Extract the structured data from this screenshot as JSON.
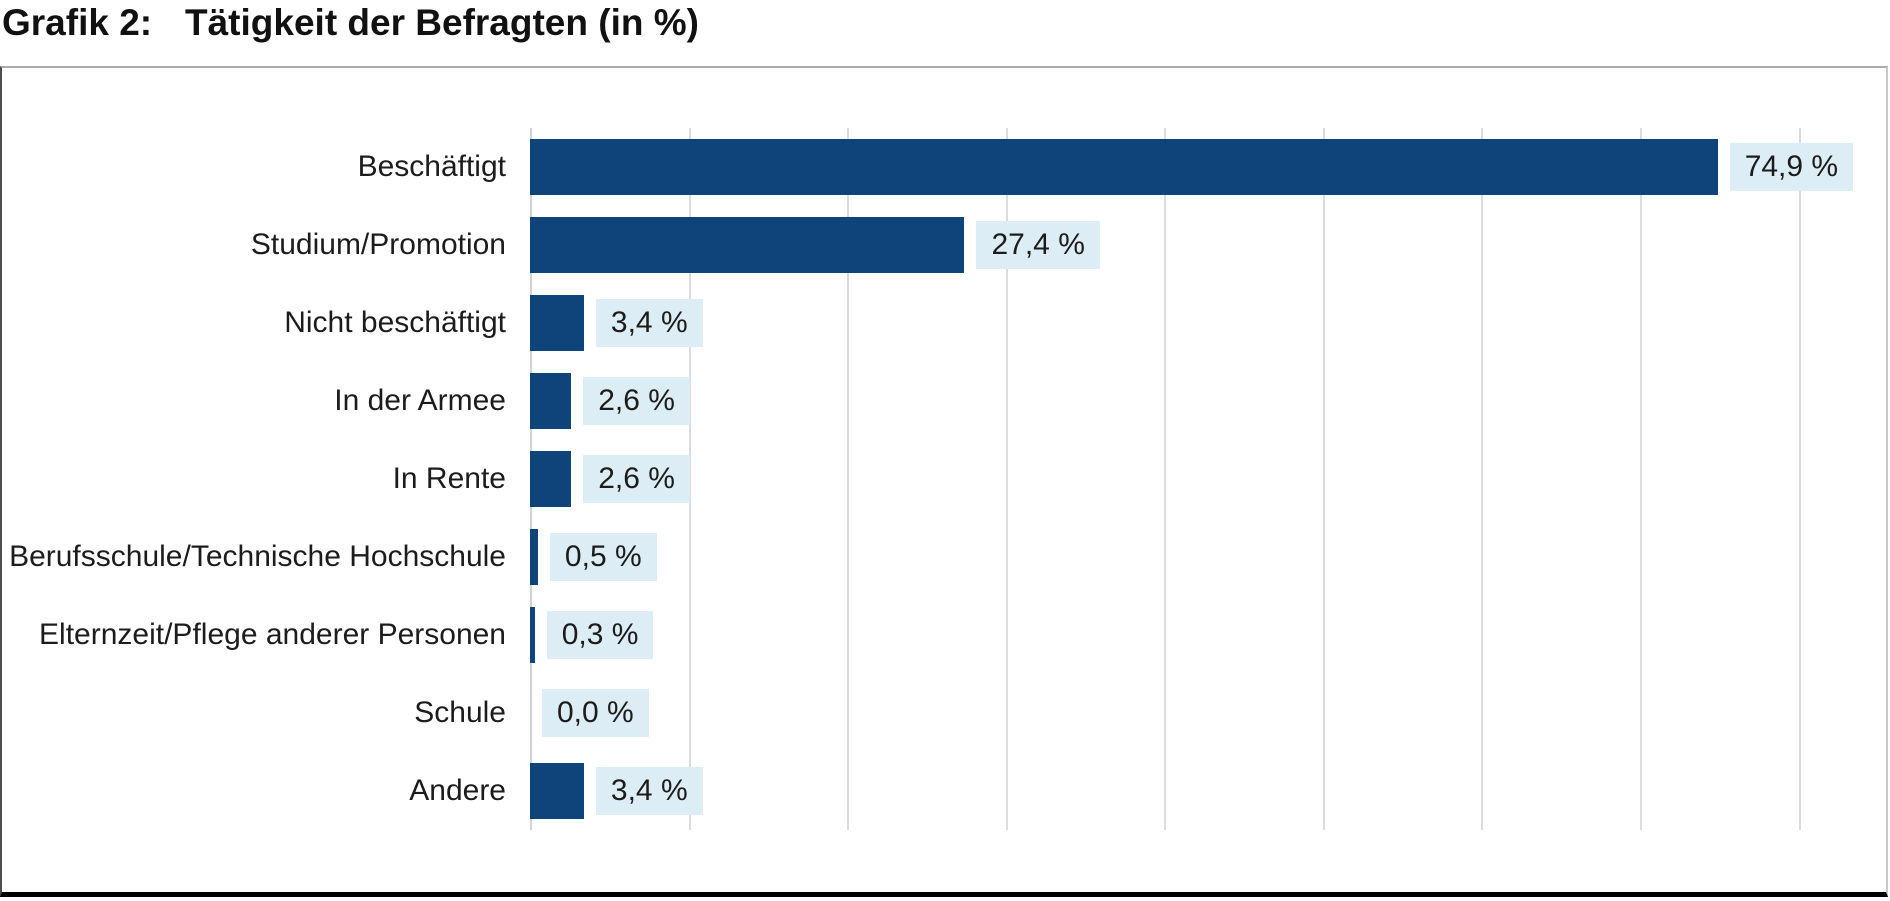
{
  "title": {
    "prefix": "Grafik 2:",
    "text": "Tätigkeit der Befragten (in %)"
  },
  "chart_data": {
    "type": "bar",
    "orientation": "horizontal",
    "title": "Tätigkeit der Befragten (in %)",
    "categories": [
      "Beschäftigt",
      "Studium/Promotion",
      "Nicht beschäftigt",
      "In der Armee",
      "In Rente",
      "Berufsschule/Technische Hochschule",
      "Elternzeit/Pflege anderer Personen",
      "Schule",
      "Andere"
    ],
    "values": [
      74.9,
      27.4,
      3.4,
      2.6,
      2.6,
      0.5,
      0.3,
      0.0,
      3.4
    ],
    "value_labels": [
      "74,9 %",
      "27,4 %",
      "3,4 %",
      "2,6 %",
      "2,6 %",
      "0,5 %",
      "0,3 %",
      "0,0 %",
      "3,4 %"
    ],
    "xlim": [
      0,
      80
    ],
    "gridline_interval": 10,
    "grid": "on",
    "legend": "none",
    "colors": {
      "bar": "#0f447b",
      "value_box_bg": "#ddedf5",
      "gridline": "#dcdcdc",
      "axis_line": "#d2d2d2",
      "frame_top_border": "#ababab",
      "bottom_rule": "#000000"
    }
  }
}
